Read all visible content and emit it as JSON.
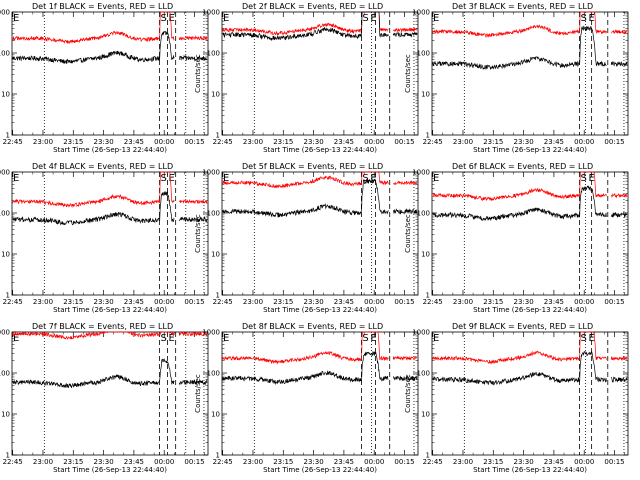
{
  "chart_data": {
    "type": "line",
    "layout": "3x3 grid",
    "x_tick_labels": [
      "22:45",
      "23:00",
      "23:15",
      "23:30",
      "23:45",
      "00:00",
      "00:15"
    ],
    "x_ticks_minutes_after_start": [
      0.33,
      15.33,
      30.33,
      45.33,
      60.33,
      75.33,
      90.33
    ],
    "x_range_minutes_after_start": [
      0,
      97
    ],
    "xlabel": "Start Time (26-Sep-13 22:44:40)",
    "ylabel": "Counts/sec",
    "y_scale": "log",
    "y_range": [
      1,
      1000
    ],
    "y_tick_labels": [
      "1",
      "10",
      "100",
      "1000"
    ],
    "series_colors": {
      "events": "#000000",
      "lld": "#ff0000"
    },
    "marker_labels": [
      "E",
      "S",
      "E"
    ],
    "panels": [
      {
        "title": "Det 1f BLACK = Events, RED = LLD",
        "events_level": 75,
        "lld_level": 230,
        "lld_peak": 2000,
        "events_peak": 300,
        "dotted_lines": [
          16,
          86,
          95
        ],
        "dashed_lines": [
          73,
          77,
          81
        ]
      },
      {
        "title": "Det 2f BLACK = Events, RED = LLD",
        "events_level": 280,
        "lld_level": 370,
        "lld_peak": 9000,
        "events_peak": 5000,
        "dotted_lines": [
          16,
          74,
          95
        ],
        "dashed_lines": [
          69,
          76,
          83
        ]
      },
      {
        "title": "Det 3f BLACK = Events, RED = LLD",
        "events_level": 55,
        "lld_level": 330,
        "lld_peak": 3000,
        "events_peak": 400,
        "dotted_lines": [
          16,
          76,
          95
        ],
        "dashed_lines": [
          73,
          79,
          87
        ]
      },
      {
        "title": "Det 4f BLACK = Events, RED = LLD",
        "events_level": 70,
        "lld_level": 190,
        "lld_peak": 2000,
        "events_peak": 300,
        "dotted_lines": [
          16,
          86,
          95
        ],
        "dashed_lines": [
          73,
          77,
          81
        ]
      },
      {
        "title": "Det 5f BLACK = Events, RED = LLD",
        "events_level": 110,
        "lld_level": 550,
        "lld_peak": 3000,
        "events_peak": 600,
        "dotted_lines": [
          16,
          74,
          95
        ],
        "dashed_lines": [
          69,
          76,
          83
        ]
      },
      {
        "title": "Det 6f BLACK = Events, RED = LLD",
        "events_level": 90,
        "lld_level": 270,
        "lld_peak": 2000,
        "events_peak": 400,
        "dotted_lines": [
          16,
          76,
          95
        ],
        "dashed_lines": [
          73,
          79,
          87
        ]
      },
      {
        "title": "Det 7f BLACK = Events, RED = LLD",
        "events_level": 60,
        "lld_level": 900,
        "lld_peak": 1100,
        "events_peak": 200,
        "dotted_lines": [
          16,
          86,
          95
        ],
        "dashed_lines": [
          73,
          77,
          81
        ]
      },
      {
        "title": "Det 8f BLACK = Events, RED = LLD",
        "events_level": 75,
        "lld_level": 230,
        "lld_peak": 2000,
        "events_peak": 300,
        "dotted_lines": [
          16,
          74,
          95
        ],
        "dashed_lines": [
          69,
          76,
          83
        ]
      },
      {
        "title": "Det 9f BLACK = Events, RED = LLD",
        "events_level": 70,
        "lld_level": 230,
        "lld_peak": 2000,
        "events_peak": 300,
        "dotted_lines": [
          16,
          76,
          95
        ],
        "dashed_lines": [
          73,
          79,
          87
        ]
      }
    ]
  }
}
